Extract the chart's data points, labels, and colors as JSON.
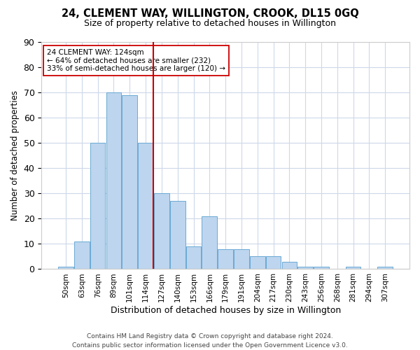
{
  "title": "24, CLEMENT WAY, WILLINGTON, CROOK, DL15 0GQ",
  "subtitle": "Size of property relative to detached houses in Willington",
  "xlabel": "Distribution of detached houses by size in Willington",
  "ylabel": "Number of detached properties",
  "categories": [
    "50sqm",
    "63sqm",
    "76sqm",
    "89sqm",
    "101sqm",
    "114sqm",
    "127sqm",
    "140sqm",
    "153sqm",
    "166sqm",
    "179sqm",
    "191sqm",
    "204sqm",
    "217sqm",
    "230sqm",
    "243sqm",
    "256sqm",
    "268sqm",
    "281sqm",
    "294sqm",
    "307sqm"
  ],
  "values": [
    1,
    11,
    50,
    70,
    69,
    50,
    30,
    27,
    9,
    21,
    8,
    8,
    5,
    5,
    3,
    1,
    1,
    0,
    1,
    0,
    1
  ],
  "bar_color": "#bdd5ee",
  "bar_edge_color": "#6aaad4",
  "highlight_line_color": "#cc0000",
  "annotation_line1": "24 CLEMENT WAY: 124sqm",
  "annotation_line2": "← 64% of detached houses are smaller (232)",
  "annotation_line3": "33% of semi-detached houses are larger (120) →",
  "annotation_box_color": "#ffffff",
  "annotation_box_edge": "#cc0000",
  "ylim": [
    0,
    90
  ],
  "yticks": [
    0,
    10,
    20,
    30,
    40,
    50,
    60,
    70,
    80,
    90
  ],
  "background_color": "#ffffff",
  "grid_color": "#cdd8ea",
  "footer_line1": "Contains HM Land Registry data © Crown copyright and database right 2024.",
  "footer_line2": "Contains public sector information licensed under the Open Government Licence v3.0."
}
